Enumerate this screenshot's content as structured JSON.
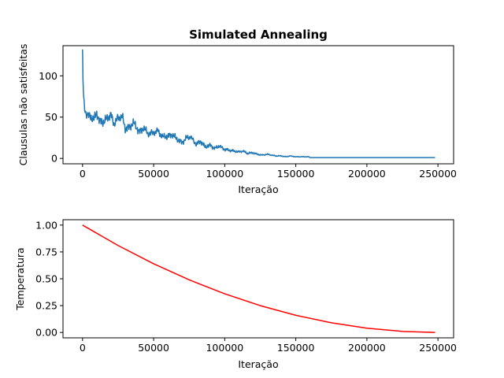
{
  "chart_data": [
    {
      "type": "line",
      "title": "Simulated Annealing",
      "xlabel": "Iteração",
      "ylabel": "Clausulas não satisfeitas",
      "xlim": [
        -13750,
        261000
      ],
      "ylim": [
        -6.5,
        136.5
      ],
      "x_ticks": [
        0,
        50000,
        100000,
        150000,
        200000,
        250000
      ],
      "x_tick_labels": [
        "0",
        "50000",
        "100000",
        "150000",
        "200000",
        "250000"
      ],
      "y_ticks": [
        0,
        50,
        100
      ],
      "y_tick_labels": [
        "0",
        "50",
        "100"
      ],
      "grid": false,
      "color": "#1f77b4",
      "series": [
        {
          "x": [
            0,
            300,
            800,
            1500,
            2500,
            4000,
            6000,
            8000,
            10000,
            12000,
            15000,
            18000,
            20000,
            22000,
            25000,
            28000,
            30000,
            33000,
            36000,
            40000,
            43000,
            46000,
            50000,
            53000,
            56000,
            60000,
            63000,
            66000,
            70000,
            73000,
            76000,
            80000,
            83000,
            86000,
            90000,
            93000,
            96000,
            100000,
            103000,
            106000,
            110000,
            113000,
            116000,
            120000,
            123000,
            126000,
            130000,
            133000,
            136000,
            140000,
            143000,
            146000,
            150000,
            153000,
            156000,
            159000,
            160000,
            170000,
            180000,
            190000,
            200000,
            210000,
            220000,
            230000,
            240000,
            248000
          ],
          "y": [
            132,
            95,
            72,
            60,
            55,
            52,
            50,
            47,
            55,
            45,
            44,
            50,
            53,
            42,
            49,
            51,
            36,
            38,
            43,
            32,
            37,
            30,
            31,
            34,
            26,
            27,
            29,
            24,
            19,
            25,
            26,
            17,
            21,
            14,
            16,
            12,
            15,
            11,
            10,
            9,
            8,
            9,
            6,
            7,
            5,
            4,
            5,
            4,
            3,
            3,
            2,
            3,
            2,
            2,
            2,
            2,
            1,
            1,
            1,
            1,
            1,
            1,
            1,
            1,
            1,
            1
          ],
          "noise_amp": [
            0,
            8,
            10,
            12,
            12,
            12,
            12,
            12,
            12,
            12,
            12,
            12,
            12,
            12,
            12,
            12,
            12,
            11,
            11,
            11,
            10,
            10,
            10,
            9,
            9,
            9,
            8,
            8,
            8,
            8,
            7,
            7,
            7,
            6,
            6,
            5,
            5,
            5,
            4,
            4,
            3,
            3,
            3,
            3,
            2,
            2,
            2,
            1.5,
            1.5,
            1.5,
            1,
            1,
            1,
            1,
            1,
            1,
            0,
            0,
            0,
            0,
            0,
            0,
            0,
            0,
            0,
            0
          ]
        }
      ]
    },
    {
      "type": "line",
      "title": "",
      "xlabel": "Iteração",
      "ylabel": "Temperatura",
      "xlim": [
        -13750,
        261000
      ],
      "ylim": [
        -0.05,
        1.05
      ],
      "x_ticks": [
        0,
        50000,
        100000,
        150000,
        200000,
        250000
      ],
      "x_tick_labels": [
        "0",
        "50000",
        "100000",
        "150000",
        "200000",
        "250000"
      ],
      "y_ticks": [
        0.0,
        0.25,
        0.5,
        0.75,
        1.0
      ],
      "y_tick_labels": [
        "0.00",
        "0.25",
        "0.50",
        "0.75",
        "1.00"
      ],
      "grid": false,
      "color": "#ff0000",
      "series": [
        {
          "x": [
            0,
            25000,
            50000,
            75000,
            100000,
            125000,
            150000,
            175000,
            200000,
            225000,
            248000
          ],
          "y": [
            1.0,
            0.81,
            0.64,
            0.49,
            0.36,
            0.25,
            0.16,
            0.09,
            0.04,
            0.01,
            0.0
          ]
        }
      ]
    }
  ]
}
